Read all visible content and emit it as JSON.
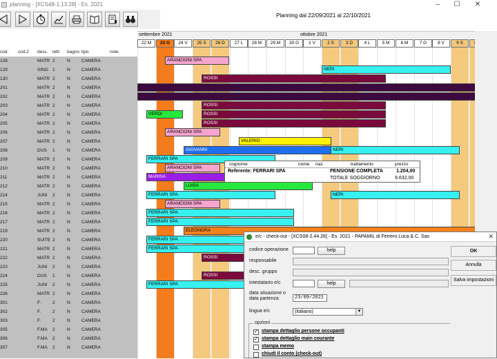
{
  "window": {
    "title": "planning - [XCS48-1.13.28] - Es. 2021",
    "minimize": "–",
    "maximize": "☐",
    "close": "✕"
  },
  "toolbar": {
    "buttons": [
      "back-arrow-icon",
      "forward-arrow-icon",
      "stopwatch-icon",
      "chart-icon",
      "printer-icon",
      "book-icon",
      "book-page-icon",
      "binoculars-icon"
    ]
  },
  "planning": {
    "range_label": "Planning dal 22/09/2021 al 22/10/2021",
    "months": [
      "settembre 2021",
      "ottobre 2021"
    ],
    "days": [
      "22 M",
      "23 G",
      "24 V",
      "25 S",
      "26 D",
      "27 L",
      "28 M",
      "29 M",
      "30 G",
      "1 V",
      "2 S",
      "3 D",
      "4 L",
      "5 M",
      "6 M",
      "7 G",
      "8 V",
      "9 S",
      "10 D"
    ],
    "weekend_flags": [
      false,
      false,
      false,
      true,
      true,
      false,
      false,
      false,
      false,
      false,
      true,
      true,
      false,
      false,
      false,
      false,
      false,
      true,
      true
    ],
    "today_index": 1
  },
  "columns": {
    "cod": "cod.",
    "cod2": "cod.2",
    "desc": "desc.",
    "letti": "letti",
    "bagno": "bagno",
    "tipo": "tipo",
    "note": "note"
  },
  "rooms": [
    {
      "cod": "128",
      "desc": "MATR",
      "letti": "2",
      "bagno": "N",
      "tipo": "CAMERA"
    },
    {
      "cod": "129",
      "desc": "SING",
      "letti": "1",
      "bagno": "N",
      "tipo": "CAMERA"
    },
    {
      "cod": "130",
      "desc": "MATR",
      "letti": "2",
      "bagno": "N",
      "tipo": "CAMERA"
    },
    {
      "cod": "201",
      "desc": "MATR",
      "letti": "2",
      "bagno": "N",
      "tipo": "CAMERA"
    },
    {
      "cod": "202",
      "desc": "MATR",
      "letti": "2",
      "bagno": "N",
      "tipo": "CAMERA"
    },
    {
      "cod": "203",
      "desc": "MATR",
      "letti": "2",
      "bagno": "N",
      "tipo": "CAMERA"
    },
    {
      "cod": "204",
      "desc": "MATR",
      "letti": "2",
      "bagno": "N",
      "tipo": "CAMERA"
    },
    {
      "cod": "205",
      "desc": "MATR",
      "letti": "2",
      "bagno": "N",
      "tipo": "CAMERA"
    },
    {
      "cod": "206",
      "desc": "MATR",
      "letti": "2",
      "bagno": "N",
      "tipo": "CAMERA"
    },
    {
      "cod": "207",
      "desc": "MATR",
      "letti": "2",
      "bagno": "N",
      "tipo": "CAMERA"
    },
    {
      "cod": "208",
      "desc": "DUS",
      "letti": "1",
      "bagno": "N",
      "tipo": "CAMERA"
    },
    {
      "cod": "209",
      "desc": "MATR",
      "letti": "2",
      "bagno": "N",
      "tipo": "CAMERA"
    },
    {
      "cod": "210",
      "desc": "MATR",
      "letti": "2",
      "bagno": "N",
      "tipo": "CAMERA"
    },
    {
      "cod": "211",
      "desc": "MATR",
      "letti": "2",
      "bagno": "N",
      "tipo": "CAMERA"
    },
    {
      "cod": "212",
      "desc": "MATR",
      "letti": "2",
      "bagno": "N",
      "tipo": "CAMERA"
    },
    {
      "cod": "214",
      "desc": "JUNI",
      "letti": "2",
      "bagno": "N",
      "tipo": "CAMERA"
    },
    {
      "cod": "215",
      "desc": "MATR",
      "letti": "2",
      "bagno": "N",
      "tipo": "CAMERA"
    },
    {
      "cod": "216",
      "desc": "MATR",
      "letti": "2",
      "bagno": "N",
      "tipo": "CAMERA"
    },
    {
      "cod": "217",
      "desc": "MATR",
      "letti": "2",
      "bagno": "N",
      "tipo": "CAMERA"
    },
    {
      "cod": "219",
      "desc": "MATR",
      "letti": "2",
      "bagno": "N",
      "tipo": "CAMERA"
    },
    {
      "cod": "220",
      "desc": "SUITE",
      "letti": "2",
      "bagno": "N",
      "tipo": "CAMERA"
    },
    {
      "cod": "221",
      "desc": "MATR",
      "letti": "2",
      "bagno": "N",
      "tipo": "CAMERA"
    },
    {
      "cod": "222",
      "desc": "MATR",
      "letti": "2",
      "bagno": "N",
      "tipo": "CAMERA"
    },
    {
      "cod": "223",
      "desc": "JUNI",
      "letti": "2",
      "bagno": "N",
      "tipo": "CAMERA"
    },
    {
      "cod": "224",
      "desc": "DUS",
      "letti": "1",
      "bagno": "N",
      "tipo": "CAMERA"
    },
    {
      "cod": "225",
      "desc": "JUNI",
      "letti": "2",
      "bagno": "N",
      "tipo": "CAMERA"
    },
    {
      "cod": "226",
      "desc": "MATR",
      "letti": "2",
      "bagno": "N",
      "tipo": "CAMERA"
    },
    {
      "cod": "301",
      "desc": "F.",
      "letti": "2",
      "bagno": "N",
      "tipo": "CAMERA"
    },
    {
      "cod": "302",
      "desc": "F.",
      "letti": "2",
      "bagno": "N",
      "tipo": "CAMERA"
    },
    {
      "cod": "303",
      "desc": "F.",
      "letti": "2",
      "bagno": "N",
      "tipo": "CAMERA"
    },
    {
      "cod": "305",
      "desc": "F.MA",
      "letti": "2",
      "bagno": "N",
      "tipo": "CAMERA"
    },
    {
      "cod": "306",
      "desc": "F.MA",
      "letti": "2",
      "bagno": "N",
      "tipo": "CAMERA"
    },
    {
      "cod": "307",
      "desc": "F.MA",
      "letti": "2",
      "bagno": "N",
      "tipo": "CAMERA"
    }
  ],
  "bookings": [
    {
      "row": 0,
      "label": "ARANCIONI SPA",
      "start": 1.5,
      "days": 3.5,
      "color": "#f6a5cf"
    },
    {
      "row": 1,
      "label": "NERI",
      "start": 10,
      "days": 7,
      "color": "#37f0f0"
    },
    {
      "row": 2,
      "label": "ROSSI",
      "start": 3.5,
      "days": 10,
      "color": "#7a0a3c"
    },
    {
      "row": 3,
      "label": "",
      "start": 0,
      "days": 19,
      "color": "#3d0a3f"
    },
    {
      "row": 4,
      "label": "",
      "start": 0,
      "days": 19,
      "color": "#3d0a3f"
    },
    {
      "row": 5,
      "label": "ROSSI",
      "start": 3.5,
      "days": 10,
      "color": "#7a0a3c"
    },
    {
      "row": 6,
      "label": "VERDI",
      "start": 0.5,
      "days": 2,
      "color": "#27e83d"
    },
    {
      "row": 6,
      "label": "ROSSI",
      "start": 3.5,
      "days": 10,
      "color": "#7a0a3c"
    },
    {
      "row": 7,
      "label": "ROSSI",
      "start": 3.5,
      "days": 10,
      "color": "#7a0a3c"
    },
    {
      "row": 8,
      "label": "ARANCIONI SPA",
      "start": 1.5,
      "days": 3,
      "color": "#f6a5cf"
    },
    {
      "row": 9,
      "label": "VALERIO",
      "start": 5.5,
      "days": 5,
      "color": "#fff100"
    },
    {
      "row": 10,
      "label": "GIOVANNI",
      "start": 2.5,
      "days": 8,
      "color": "#1e6ff0"
    },
    {
      "row": 10,
      "label": "NERI",
      "start": 10.5,
      "days": 7,
      "color": "#37f0f0"
    },
    {
      "row": 11,
      "label": "FERRARI SPA",
      "start": 0.5,
      "days": 7,
      "color": "#37f0f0"
    },
    {
      "row": 12,
      "label": "ARANCIONI SPA",
      "start": 1.5,
      "days": 3,
      "color": "#f6a5cf"
    },
    {
      "row": 13,
      "label": "MARISA",
      "start": 0.5,
      "days": 4.3,
      "color": "#9a1ee8"
    },
    {
      "row": 14,
      "label": "LUISA",
      "start": 2.5,
      "days": 7,
      "color": "#27e83d"
    },
    {
      "row": 15,
      "label": "FERRARI SPA",
      "start": 0.5,
      "days": 7,
      "color": "#37f0f0"
    },
    {
      "row": 15,
      "label": "NERI",
      "start": 10.5,
      "days": 7,
      "color": "#37f0f0"
    },
    {
      "row": 16,
      "label": "ARANCIONI SPA",
      "start": 1.5,
      "days": 3,
      "color": "#f6a5cf"
    },
    {
      "row": 17,
      "label": "FERRARI SPA",
      "start": 0.5,
      "days": 8,
      "color": "#37f0f0"
    },
    {
      "row": 18,
      "label": "FERRARI SPA",
      "start": 0.5,
      "days": 8,
      "color": "#37f0f0"
    },
    {
      "row": 19,
      "label": "ELEONORA",
      "start": 2.5,
      "days": 16,
      "color": "#f4821c"
    },
    {
      "row": 20,
      "label": "FERRARI SPA",
      "start": 0.5,
      "days": 5.5,
      "color": "#37f0f0"
    },
    {
      "row": 21,
      "label": "FERRARI SPA",
      "start": 0.5,
      "days": 5.5,
      "color": "#37f0f0"
    },
    {
      "row": 22,
      "label": "ROSSI",
      "start": 3.5,
      "days": 2.5,
      "color": "#7a0a3c"
    },
    {
      "row": 24,
      "label": "ROSSI",
      "start": 3.5,
      "days": 2.5,
      "color": "#7a0a3c"
    },
    {
      "row": 25,
      "label": "FERRARI SPA",
      "start": 0.5,
      "days": 5.5,
      "color": "#37f0f0"
    }
  ],
  "tooltip": {
    "headers": [
      "cognome",
      "nome",
      "naz.",
      "trattamento",
      "prezzo"
    ],
    "referente": "Referente: FERRARI SPA",
    "trattamento": "PENSIONE COMPLETA",
    "prezzo": "1.204,00",
    "totale_label": "TOTALE SOGGIORNO",
    "totale": "9.632,00"
  },
  "dialog": {
    "title": "e/c - check-out - [XCS08-2.44.28] - Es. 2021 - PAPAMIL di Ferrero Luca & C. Sas",
    "labels": {
      "codice_operazione": "codice operazione",
      "responsabile": "responsabile",
      "desc_gruppo": "desc. gruppo",
      "intestatario": "intestatario e/c",
      "data_situazione": "data situazione o",
      "data_partenza": "data partenza",
      "lingua": "lingua e/c",
      "opzioni": "opzioni"
    },
    "help_label": "help",
    "help2_label": "help",
    "data_value": "23/09/2021",
    "lingua_value": "(italiano)",
    "ok_label": "OK",
    "annulla_label": "Annulla",
    "salva_label": "Salva impostazioni",
    "options": [
      {
        "label": "stampa dettaglio persone occupanti",
        "checked": true
      },
      {
        "label": "stampa dettaglio main courante",
        "checked": true
      },
      {
        "label": "stampa memo",
        "checked": false
      },
      {
        "label": "chiudi il conto (check-out)",
        "checked": false
      }
    ]
  }
}
